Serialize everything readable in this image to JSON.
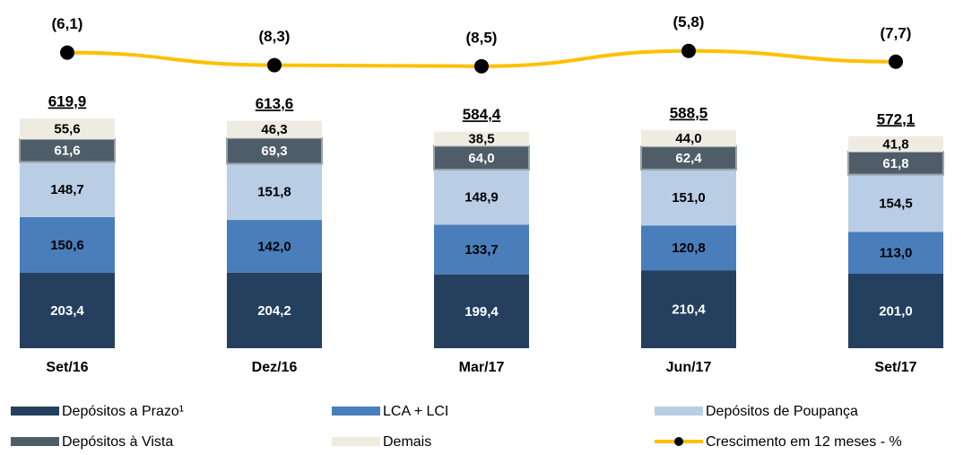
{
  "chart_data": {
    "type": "stacked_bar_line",
    "categories": [
      "Set/16",
      "Dez/16",
      "Mar/17",
      "Jun/17",
      "Set/17"
    ],
    "ylim": [
      0,
      700
    ],
    "y2lim": [
      -12,
      0
    ],
    "series": [
      {
        "name": "Depósitos a Prazo¹",
        "color": "#253f5e",
        "values": [
          203.4,
          204.2,
          199.4,
          210.4,
          201.0
        ],
        "value_labels": [
          "203,4",
          "204,2",
          "199,4",
          "210,4",
          "201,0"
        ]
      },
      {
        "name": "LCA + LCI",
        "color": "#4a7ebb",
        "values": [
          150.6,
          142.0,
          133.7,
          120.8,
          113.0
        ],
        "value_labels": [
          "150,6",
          "142,0",
          "133,7",
          "120,8",
          "113,0"
        ]
      },
      {
        "name": "Depósitos de Poupança",
        "color": "#b9cde5",
        "values": [
          148.7,
          151.8,
          148.9,
          151.0,
          154.5
        ],
        "value_labels": [
          "148,7",
          "151,8",
          "148,9",
          "151,0",
          "154,5"
        ]
      },
      {
        "name": "Depósitos à Vista",
        "color": "#4f5d68",
        "values": [
          61.6,
          69.3,
          64.0,
          62.4,
          61.8
        ],
        "value_labels": [
          "61,6",
          "69,3",
          "64,0",
          "62,4",
          "61,8"
        ]
      },
      {
        "name": "Demais",
        "color": "#eeece1",
        "values": [
          55.6,
          46.3,
          38.5,
          44.0,
          41.8
        ],
        "value_labels": [
          "55,6",
          "46,3",
          "38,5",
          "44,0",
          "41,8"
        ]
      },
      {
        "name": "Crescimento em 12 meses - %",
        "type": "line",
        "axis": "y2",
        "color": "#ffc000",
        "marker_color": "#000000",
        "values": [
          -6.1,
          -8.3,
          -8.5,
          -5.8,
          -7.7
        ],
        "value_labels": [
          "(6,1)",
          "(8,3)",
          "(8,5)",
          "(5,8)",
          "(7,7)"
        ]
      }
    ],
    "totals": [
      619.9,
      613.6,
      584.4,
      588.5,
      572.1
    ],
    "total_labels": [
      "619,9",
      "613,6",
      "584,4",
      "588,5",
      "572,1"
    ]
  }
}
